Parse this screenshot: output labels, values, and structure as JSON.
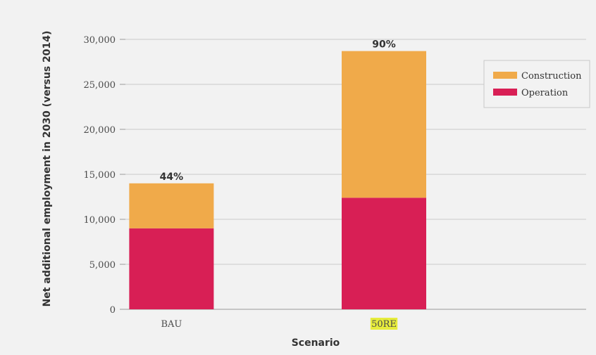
{
  "chart_data": {
    "type": "bar",
    "stacked": true,
    "categories": [
      "BAU",
      "50RE"
    ],
    "highlighted_category": "50RE",
    "highlight_color": "#e6ec3c",
    "series": [
      {
        "name": "Operation",
        "values": [
          9000,
          12400
        ],
        "color": "#d81f55"
      },
      {
        "name": "Construction",
        "values": [
          5000,
          16300
        ],
        "color": "#f0aa4a"
      }
    ],
    "data_labels": [
      "44%",
      "90%"
    ],
    "xlabel": "Scenario",
    "ylabel": "Net additional employment in 2030 (versus 2014)",
    "ylim": [
      0,
      30000
    ],
    "yticks": [
      0,
      5000,
      10000,
      15000,
      20000,
      25000,
      30000
    ],
    "ytick_labels": [
      "0",
      "5,000",
      "10,000",
      "15,000",
      "20,000",
      "25,000",
      "30,000"
    ],
    "grid": true,
    "legend": {
      "placement": "top-right",
      "entries": [
        "Construction",
        "Operation"
      ]
    }
  }
}
